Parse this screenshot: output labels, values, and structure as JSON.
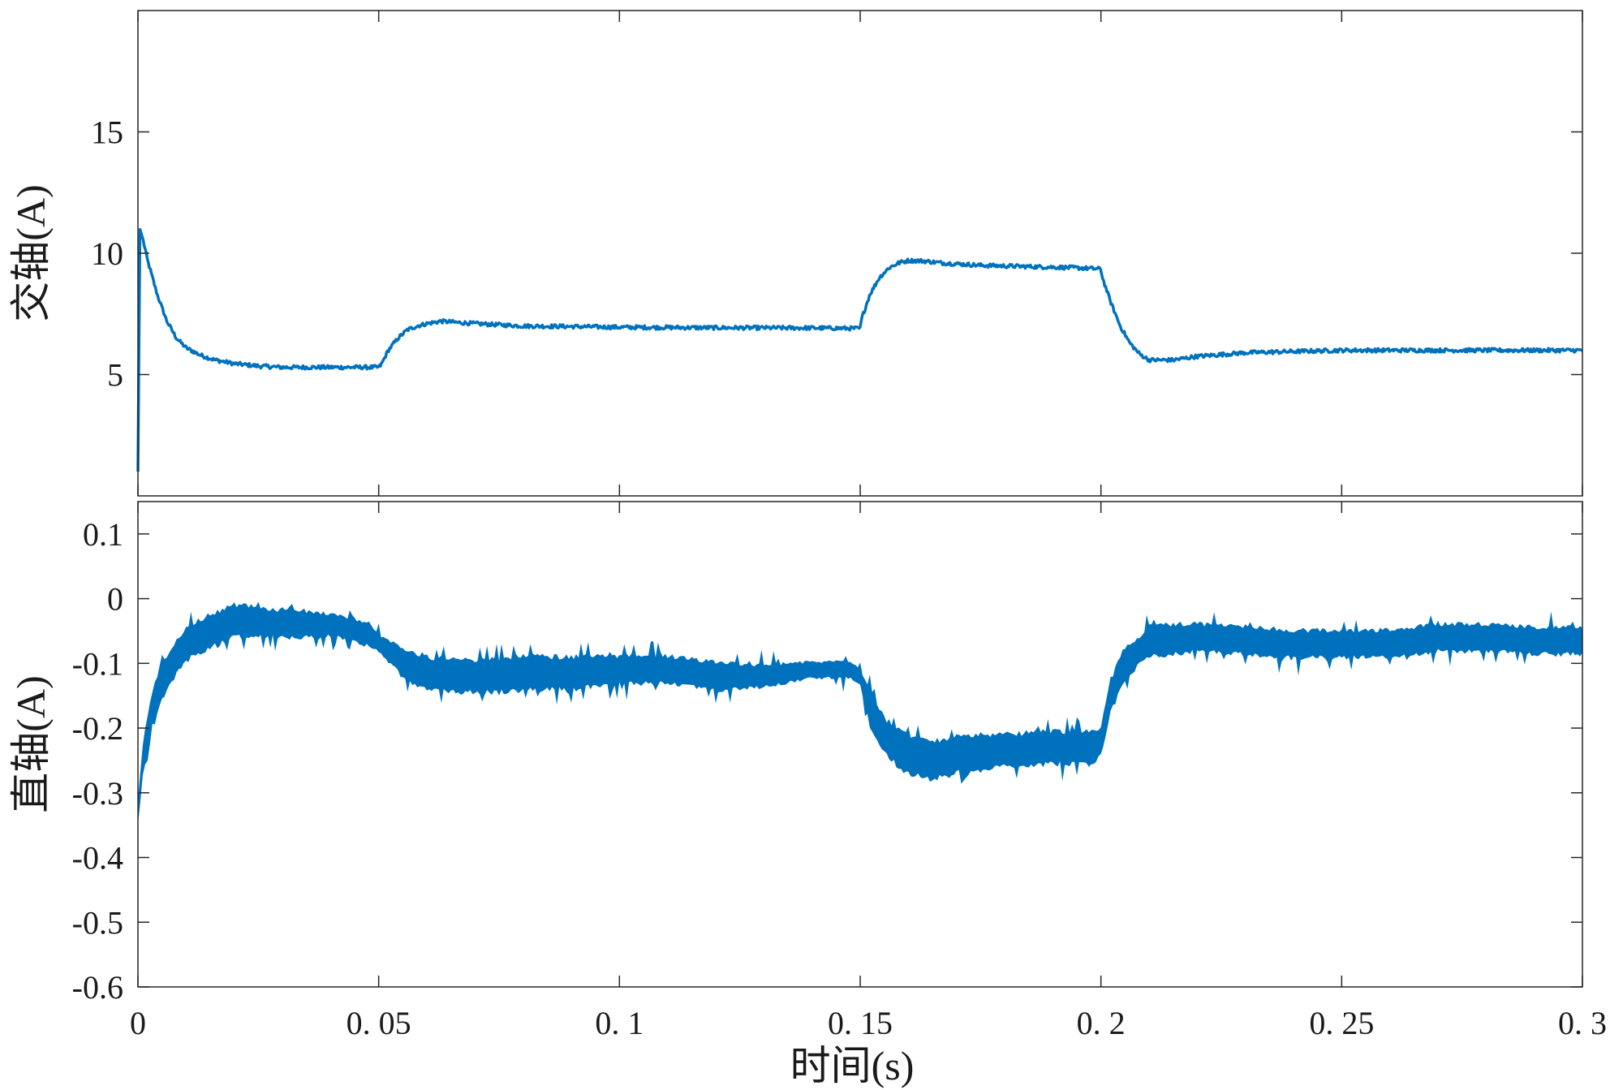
{
  "chart_data": [
    {
      "type": "line",
      "ylabel": "交轴(A)",
      "xlim": [
        0,
        0.3
      ],
      "ylim": [
        0,
        20
      ],
      "yticks": [
        5,
        10,
        15
      ],
      "ytick_labels": [
        "5",
        "10",
        "15"
      ],
      "grid": false,
      "series": [
        {
          "color": "#0072BD",
          "noise": 0.08,
          "x": [
            0,
            0.0004,
            0.001,
            0.002,
            0.004,
            0.006,
            0.008,
            0.01,
            0.013,
            0.016,
            0.02,
            0.025,
            0.03,
            0.04,
            0.05,
            0.0505,
            0.052,
            0.054,
            0.056,
            0.058,
            0.06,
            0.063,
            0.066,
            0.07,
            0.08,
            0.09,
            0.1,
            0.12,
            0.14,
            0.15,
            0.1503,
            0.152,
            0.154,
            0.156,
            0.158,
            0.16,
            0.163,
            0.167,
            0.175,
            0.185,
            0.195,
            0.2,
            0.2003,
            0.202,
            0.204,
            0.206,
            0.208,
            0.21,
            0.215,
            0.22,
            0.23,
            0.25,
            0.27,
            0.29,
            0.3
          ],
          "y": [
            1.0,
            11.0,
            10.6,
            9.7,
            8.3,
            7.2,
            6.5,
            6.1,
            5.8,
            5.6,
            5.45,
            5.35,
            5.3,
            5.3,
            5.3,
            5.4,
            6.0,
            6.5,
            6.85,
            7.0,
            7.1,
            7.2,
            7.15,
            7.1,
            7.0,
            6.98,
            6.95,
            6.93,
            6.92,
            6.9,
            7.3,
            8.3,
            9.0,
            9.4,
            9.6,
            9.7,
            9.68,
            9.6,
            9.5,
            9.45,
            9.4,
            9.35,
            9.0,
            8.0,
            7.0,
            6.3,
            5.85,
            5.6,
            5.6,
            5.75,
            5.9,
            6.0,
            6.0,
            6.0,
            6.0
          ]
        }
      ]
    },
    {
      "type": "line",
      "xlabel": "时间(s)",
      "ylabel": "直轴(A)",
      "xlim": [
        0,
        0.3
      ],
      "ylim": [
        -0.6,
        0.15
      ],
      "xticks": [
        0,
        0.05,
        0.1,
        0.15,
        0.2,
        0.25,
        0.3
      ],
      "xtick_labels": [
        "0",
        "0. 05",
        "0. 1",
        "0. 15",
        "0. 2",
        "0. 25",
        "0. 3"
      ],
      "yticks": [
        0.1,
        0,
        -0.1,
        -0.2,
        -0.3,
        -0.4,
        -0.5,
        -0.6
      ],
      "ytick_labels": [
        "0.1",
        "0",
        "-0.1",
        "-0.2",
        "-0.3",
        "-0.4",
        "-0.5",
        "-0.6"
      ],
      "grid": false,
      "series": [
        {
          "color": "#0072BD",
          "x": [
            0,
            0.001,
            0.003,
            0.005,
            0.008,
            0.01,
            0.015,
            0.02,
            0.025,
            0.03,
            0.04,
            0.048,
            0.05,
            0.052,
            0.055,
            0.058,
            0.06,
            0.065,
            0.07,
            0.075,
            0.08,
            0.09,
            0.1,
            0.11,
            0.12,
            0.13,
            0.14,
            0.148,
            0.15,
            0.152,
            0.155,
            0.158,
            0.16,
            0.165,
            0.17,
            0.18,
            0.19,
            0.198,
            0.2,
            0.202,
            0.205,
            0.208,
            0.21,
            0.22,
            0.23,
            0.24,
            0.25,
            0.26,
            0.27,
            0.28,
            0.29,
            0.3
          ],
          "y": [
            -0.33,
            -0.25,
            -0.17,
            -0.13,
            -0.09,
            -0.07,
            -0.05,
            -0.035,
            -0.035,
            -0.04,
            -0.04,
            -0.055,
            -0.07,
            -0.08,
            -0.1,
            -0.11,
            -0.115,
            -0.12,
            -0.12,
            -0.12,
            -0.115,
            -0.115,
            -0.11,
            -0.11,
            -0.12,
            -0.12,
            -0.11,
            -0.11,
            -0.12,
            -0.17,
            -0.21,
            -0.23,
            -0.24,
            -0.25,
            -0.24,
            -0.235,
            -0.23,
            -0.23,
            -0.22,
            -0.15,
            -0.1,
            -0.08,
            -0.065,
            -0.06,
            -0.065,
            -0.07,
            -0.07,
            -0.07,
            -0.06,
            -0.06,
            -0.065,
            -0.065
          ],
          "band_half_width": [
            0.02,
            0.03,
            0.03,
            0.03,
            0.03,
            0.03,
            0.03,
            0.03,
            0.025,
            0.025,
            0.02,
            0.02,
            0.015,
            0.02,
            0.025,
            0.03,
            0.03,
            0.03,
            0.03,
            0.03,
            0.03,
            0.03,
            0.025,
            0.025,
            0.025,
            0.02,
            0.015,
            0.015,
            0.015,
            0.03,
            0.03,
            0.035,
            0.035,
            0.035,
            0.035,
            0.03,
            0.03,
            0.03,
            0.025,
            0.03,
            0.03,
            0.025,
            0.03,
            0.025,
            0.025,
            0.025,
            0.025,
            0.025,
            0.025,
            0.025,
            0.025,
            0.025
          ]
        }
      ]
    }
  ]
}
